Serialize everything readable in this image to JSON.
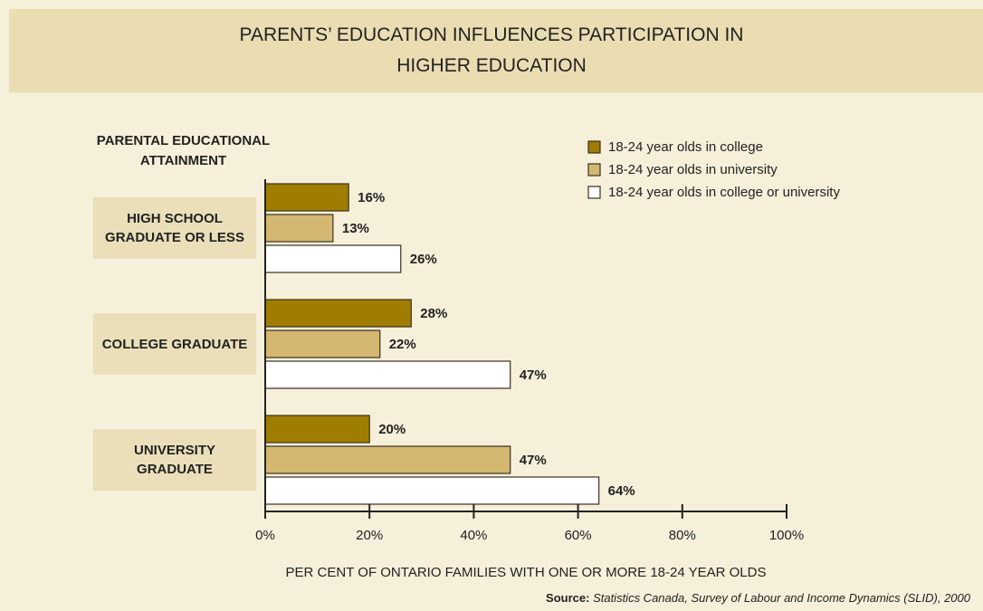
{
  "chart_data": {
    "type": "barh",
    "title": "PARENTS’ EDUCATION INFLUENCES PARTICIPATION IN HIGHER EDUCATION",
    "ylabel": "PARENTAL EDUCATIONAL ATTAINMENT",
    "xlabel": "PER CENT OF ONTARIO FAMILIES WITH ONE OR MORE 18-24 YEAR OLDS",
    "source_label": "Source:",
    "source": "Statistics Canada, Survey of Labour and Income Dynamics (SLID), 2000",
    "categories": [
      "HIGH SCHOOL GRADUATE OR LESS",
      "COLLEGE GRADUATE",
      "UNIVERSITY GRADUATE"
    ],
    "series": [
      {
        "name": "18-24 year olds in college",
        "color": "#9e7d00",
        "values": [
          16,
          28,
          20
        ],
        "value_labels": [
          "16%",
          "28%",
          "20%"
        ]
      },
      {
        "name": "18-24 year olds in university",
        "color": "#d4b872",
        "values": [
          13,
          22,
          47
        ],
        "value_labels": [
          "13%",
          "22%",
          "47%"
        ]
      },
      {
        "name": "18-24 year olds in college or university",
        "color": "#ffffff",
        "values": [
          26,
          47,
          64
        ],
        "value_labels": [
          "26%",
          "47%",
          "64%"
        ]
      }
    ],
    "xlim": [
      0,
      100
    ],
    "xticks": [
      {
        "value": 0,
        "label": "0%"
      },
      {
        "value": 20,
        "label": "20%"
      },
      {
        "value": 40,
        "label": "40%"
      },
      {
        "value": 60,
        "label": "60%"
      },
      {
        "value": 80,
        "label": "80%"
      },
      {
        "value": 100,
        "label": "100%"
      }
    ],
    "legend": "upper right"
  }
}
